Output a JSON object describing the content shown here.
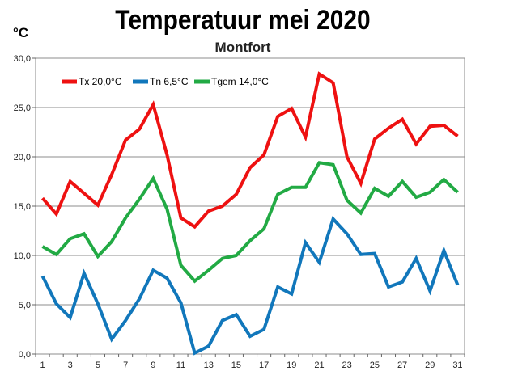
{
  "chart_data": {
    "type": "line",
    "title": "Temperatuur mei 2020",
    "subtitle": "Montfort",
    "ylabel": "°C",
    "xlabel": "",
    "ylim": [
      0,
      30
    ],
    "y_ticks": [
      "0,0",
      "5,0",
      "10,0",
      "15,0",
      "20,0",
      "25,0",
      "30,0"
    ],
    "y_tick_values": [
      0,
      5,
      10,
      15,
      20,
      25,
      30
    ],
    "x": [
      1,
      2,
      3,
      4,
      5,
      6,
      7,
      8,
      9,
      10,
      11,
      12,
      13,
      14,
      15,
      16,
      17,
      18,
      19,
      20,
      21,
      22,
      23,
      24,
      25,
      26,
      27,
      28,
      29,
      30,
      31
    ],
    "x_tick_labels": [
      "1",
      "3",
      "5",
      "7",
      "9",
      "11",
      "13",
      "15",
      "17",
      "19",
      "21",
      "23",
      "25",
      "27",
      "29",
      "31"
    ],
    "x_tick_values": [
      1,
      3,
      5,
      7,
      9,
      11,
      13,
      15,
      17,
      19,
      21,
      23,
      25,
      27,
      29,
      31
    ],
    "grid": true,
    "legend_position": "top-left",
    "series": [
      {
        "name": "Tx 20,0°C",
        "color": "#ee1111",
        "values": [
          15.8,
          14.2,
          17.5,
          16.3,
          15.1,
          18.2,
          21.7,
          22.8,
          25.3,
          20.2,
          13.8,
          12.9,
          14.5,
          15.0,
          16.2,
          18.9,
          20.2,
          24.1,
          24.9,
          22.0,
          28.4,
          27.5,
          20.0,
          17.3,
          21.8,
          22.9,
          23.8,
          21.3,
          23.1,
          23.2,
          22.1
        ]
      },
      {
        "name": "Tn 6,5°C",
        "color": "#1177bb",
        "values": [
          7.9,
          5.1,
          3.7,
          8.2,
          5.1,
          1.5,
          3.4,
          5.6,
          8.5,
          7.7,
          5.2,
          0.1,
          0.8,
          3.4,
          4.0,
          1.8,
          2.5,
          6.8,
          6.1,
          11.3,
          9.3,
          13.7,
          12.2,
          10.1,
          10.2,
          6.8,
          7.3,
          9.7,
          6.4,
          10.5,
          7.0
        ]
      },
      {
        "name": "Tgem 14,0°C",
        "color": "#22aa44",
        "values": [
          10.9,
          10.1,
          11.7,
          12.2,
          9.9,
          11.4,
          13.8,
          15.7,
          17.8,
          14.7,
          9.0,
          7.4,
          8.5,
          9.7,
          10.0,
          11.5,
          12.7,
          16.2,
          16.9,
          16.9,
          19.4,
          19.2,
          15.6,
          14.3,
          16.8,
          16.0,
          17.5,
          15.9,
          16.4,
          17.7,
          16.4
        ]
      }
    ]
  }
}
